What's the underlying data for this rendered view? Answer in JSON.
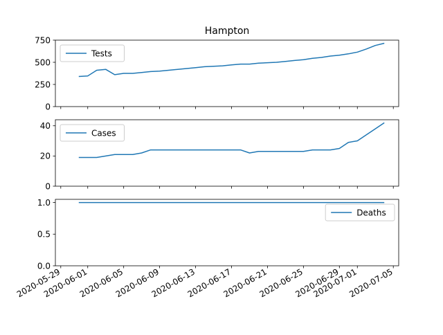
{
  "chart_data": [
    {
      "type": "line",
      "title": "Hampton",
      "ylim": [
        0,
        750
      ],
      "yticks": [
        "0",
        "250",
        "500",
        "750"
      ],
      "legend": "top-left",
      "x": [
        "2020-05-31",
        "2020-06-01",
        "2020-06-02",
        "2020-06-03",
        "2020-06-04",
        "2020-06-05",
        "2020-06-06",
        "2020-06-07",
        "2020-06-08",
        "2020-06-09",
        "2020-06-10",
        "2020-06-11",
        "2020-06-12",
        "2020-06-13",
        "2020-06-14",
        "2020-06-15",
        "2020-06-16",
        "2020-06-17",
        "2020-06-18",
        "2020-06-19",
        "2020-06-20",
        "2020-06-21",
        "2020-06-22",
        "2020-06-23",
        "2020-06-24",
        "2020-06-25",
        "2020-06-26",
        "2020-06-27",
        "2020-06-28",
        "2020-06-29",
        "2020-06-30",
        "2020-07-01",
        "2020-07-02",
        "2020-07-03",
        "2020-07-04"
      ],
      "series": [
        {
          "name": "Tests",
          "values": [
            340,
            345,
            410,
            420,
            360,
            375,
            375,
            385,
            395,
            400,
            410,
            420,
            430,
            440,
            450,
            455,
            460,
            470,
            480,
            480,
            490,
            495,
            500,
            510,
            520,
            530,
            545,
            555,
            570,
            580,
            595,
            615,
            650,
            690,
            715
          ]
        }
      ]
    },
    {
      "type": "line",
      "ylim": [
        0,
        44
      ],
      "yticks": [
        "0",
        "20",
        "40"
      ],
      "legend": "top-left",
      "x": [
        "2020-05-31",
        "2020-06-01",
        "2020-06-02",
        "2020-06-03",
        "2020-06-04",
        "2020-06-05",
        "2020-06-06",
        "2020-06-07",
        "2020-06-08",
        "2020-06-09",
        "2020-06-10",
        "2020-06-11",
        "2020-06-12",
        "2020-06-13",
        "2020-06-14",
        "2020-06-15",
        "2020-06-16",
        "2020-06-17",
        "2020-06-18",
        "2020-06-19",
        "2020-06-20",
        "2020-06-21",
        "2020-06-22",
        "2020-06-23",
        "2020-06-24",
        "2020-06-25",
        "2020-06-26",
        "2020-06-27",
        "2020-06-28",
        "2020-06-29",
        "2020-06-30",
        "2020-07-01",
        "2020-07-02",
        "2020-07-03",
        "2020-07-04"
      ],
      "series": [
        {
          "name": "Cases",
          "values": [
            19,
            19,
            19,
            20,
            21,
            21,
            21,
            22,
            24,
            24,
            24,
            24,
            24,
            24,
            24,
            24,
            24,
            24,
            24,
            22,
            23,
            23,
            23,
            23,
            23,
            23,
            24,
            24,
            24,
            25,
            29,
            30,
            34,
            38,
            42
          ]
        }
      ]
    },
    {
      "type": "line",
      "ylim": [
        0,
        1.05
      ],
      "yticks": [
        "0.0",
        "0.5",
        "1.0"
      ],
      "legend": "top-right",
      "x": [
        "2020-05-31",
        "2020-07-04"
      ],
      "series": [
        {
          "name": "Deaths",
          "values": [
            1,
            1
          ]
        }
      ]
    }
  ],
  "xticks": [
    "2020-05-29",
    "2020-06-01",
    "2020-06-05",
    "2020-06-09",
    "2020-06-13",
    "2020-06-17",
    "2020-06-21",
    "2020-06-25",
    "2020-06-29",
    "2020-07-01",
    "2020-07-05"
  ],
  "colors": {
    "line": "#1f77b4",
    "axis": "#000000",
    "legend_border": "#cccccc"
  }
}
